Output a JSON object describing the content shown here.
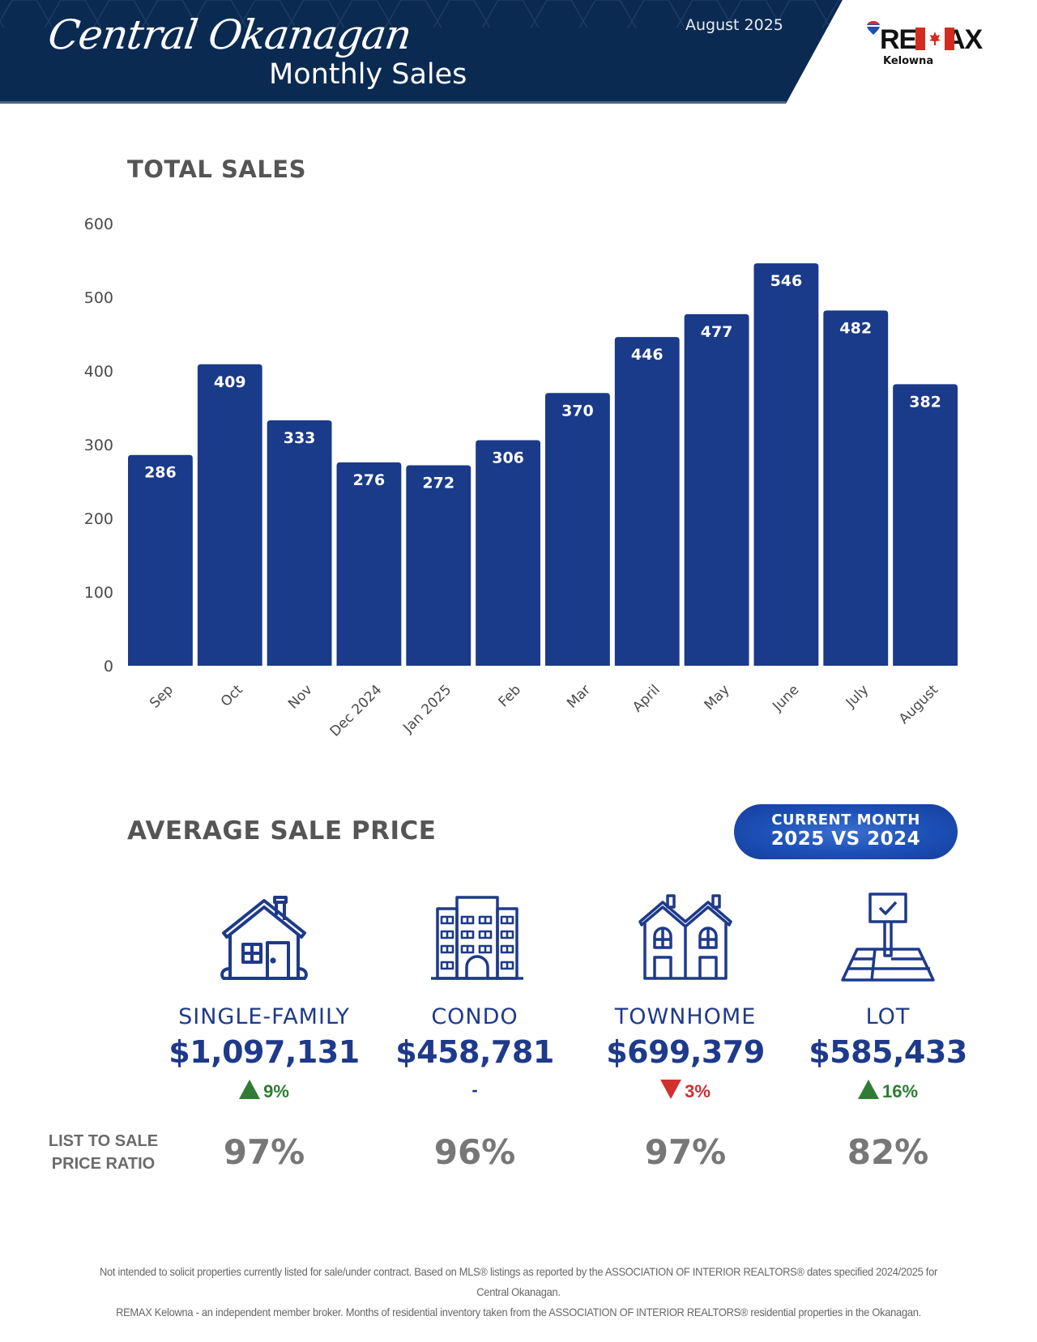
{
  "header": {
    "script_title": "Central Okanagan",
    "title": "Monthly Sales",
    "date": "August 2025",
    "brand": "RE/MAX",
    "brand_sub": "Kelowna",
    "colors": {
      "navy": "#0b2a52",
      "bar": "#1a3a8a"
    }
  },
  "total_sales": {
    "title": "TOTAL SALES"
  },
  "chart_data": {
    "type": "bar",
    "title": "TOTAL SALES",
    "xlabel": "",
    "ylabel": "",
    "categories": [
      "Sep",
      "Oct",
      "Nov",
      "Dec 2024",
      "Jan 2025",
      "Feb",
      "Mar",
      "April",
      "May",
      "June",
      "July",
      "August"
    ],
    "values": [
      286,
      409,
      333,
      276,
      272,
      306,
      370,
      446,
      477,
      546,
      482,
      382
    ],
    "ylim": [
      0,
      600
    ],
    "yticks": [
      0,
      100,
      200,
      300,
      400,
      500,
      600
    ],
    "grid": false,
    "data_labels": true,
    "bar_color": "#1a3a8a"
  },
  "average_sale_price": {
    "title": "AVERAGE SALE PRICE",
    "badge": {
      "line1": "CURRENT MONTH",
      "line2": "2025 VS 2024"
    },
    "ratio_label": "LIST TO SALE PRICE RATIO",
    "items": [
      {
        "icon": "house-icon",
        "label": "SINGLE-FAMILY",
        "price": "$1,097,131",
        "change": "9%",
        "direction": "up",
        "ratio": "97%"
      },
      {
        "icon": "condo-building-icon",
        "label": "CONDO",
        "price": "$458,781",
        "change": "-",
        "direction": "flat",
        "ratio": "96%"
      },
      {
        "icon": "townhome-icon",
        "label": "TOWNHOME",
        "price": "$699,379",
        "change": "3%",
        "direction": "down",
        "ratio": "97%"
      },
      {
        "icon": "lot-sign-icon",
        "label": "LOT",
        "price": "$585,433",
        "change": "16%",
        "direction": "up",
        "ratio": "82%"
      }
    ]
  },
  "footer": {
    "line1": "Not intended to solicit properties currently listed for sale/under contract. Based on MLS® listings as reported by the ASSOCIATION OF INTERIOR REALTORS® dates specified 2024/2025 for Central Okanagan.",
    "line2": "REMAX Kelowna - an independent member broker. Months of residential inventory taken from the ASSOCIATION OF INTERIOR REALTORS® residential properties in the Okanagan."
  }
}
